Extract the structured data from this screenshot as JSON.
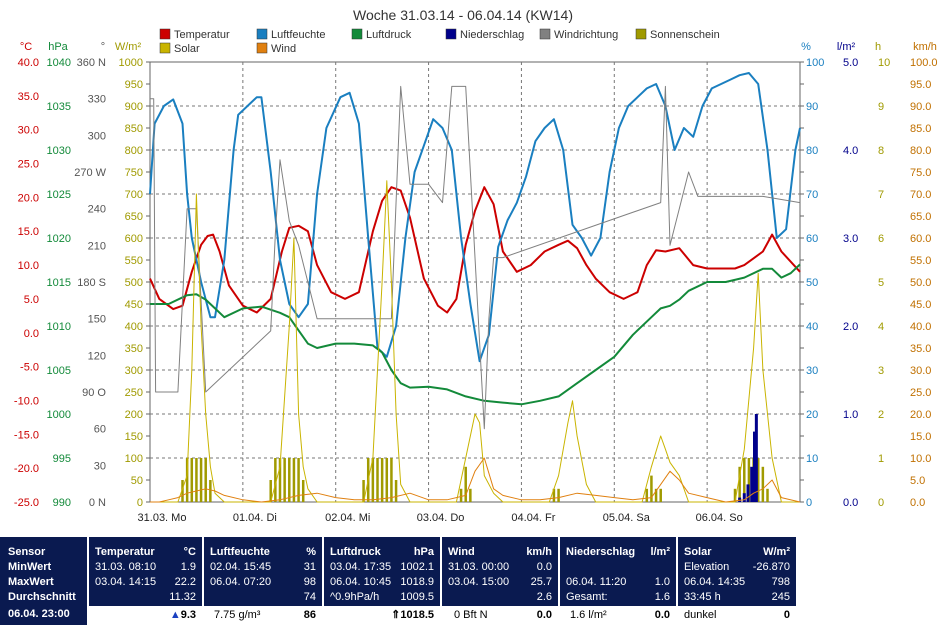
{
  "chart_data": {
    "type": "line",
    "title": "Woche 31.03.14 - 06.04.14 (KW14)",
    "legend": [
      {
        "name": "Temperatur",
        "color": "#cc0000"
      },
      {
        "name": "Luftfeuchte",
        "color": "#1a7fc0"
      },
      {
        "name": "Luftdruck",
        "color": "#138a3a"
      },
      {
        "name": "Niederschlag",
        "color": "#00008b"
      },
      {
        "name": "Windrichtung",
        "color": "#808080"
      },
      {
        "name": "Sonnenschein",
        "color": "#a09a00"
      },
      {
        "name": "Solar",
        "color": "#c9b400"
      },
      {
        "name": "Wind",
        "color": "#e08010"
      }
    ],
    "left_axes": [
      {
        "unit": "°C",
        "color": "#cc0000",
        "ticks": [
          "40.0",
          "35.0",
          "30.0",
          "25.0",
          "20.0",
          "15.0",
          "10.0",
          "5.0",
          "0.0",
          "-5.0",
          "-10.0",
          "-15.0",
          "-20.0",
          "-25.0"
        ]
      },
      {
        "unit": "hPa",
        "color": "#138a3a",
        "ticks": [
          "1040",
          "1035",
          "1030",
          "1025",
          "1020",
          "1015",
          "1010",
          "1005",
          "1000",
          "995",
          "990"
        ]
      },
      {
        "unit": "°",
        "color": "#555555",
        "ticks": [
          "360 N",
          "330",
          "300",
          "270 W",
          "240",
          "210",
          "180 S",
          "150",
          "120",
          "90 O",
          "60",
          "30",
          "0 N"
        ]
      },
      {
        "unit": "W/m²",
        "color": "#a09a00",
        "ticks": [
          "1000",
          "950",
          "900",
          "850",
          "800",
          "750",
          "700",
          "650",
          "600",
          "550",
          "500",
          "450",
          "400",
          "350",
          "300",
          "250",
          "200",
          "150",
          "100",
          "50",
          "0"
        ]
      }
    ],
    "right_axes": [
      {
        "unit": "%",
        "color": "#1a7fc0",
        "ticks": [
          "100",
          "90",
          "80",
          "70",
          "60",
          "50",
          "40",
          "30",
          "20",
          "10",
          "0"
        ]
      },
      {
        "unit": "l/m²",
        "color": "#00008b",
        "ticks": [
          "5.0",
          "4.0",
          "3.0",
          "2.0",
          "1.0",
          "0.0"
        ]
      },
      {
        "unit": "h",
        "color": "#a09a00",
        "ticks": [
          "10",
          "9",
          "8",
          "7",
          "6",
          "5",
          "4",
          "3",
          "2",
          "1",
          "0"
        ]
      },
      {
        "unit": "km/h",
        "color": "#c07000",
        "ticks": [
          "100.0",
          "95.0",
          "90.0",
          "85.0",
          "80.0",
          "75.0",
          "70.0",
          "65.0",
          "60.0",
          "55.0",
          "50.0",
          "45.0",
          "40.0",
          "35.0",
          "30.0",
          "25.0",
          "20.0",
          "15.0",
          "10.0",
          "5.0",
          "0.0"
        ]
      }
    ],
    "x_labels": [
      "31.03. Mo",
      "01.04. Di",
      "02.04. Mi",
      "03.04. Do",
      "04.04. Fr",
      "05.04. Sa",
      "06.04. So"
    ],
    "x_range_days": [
      0,
      7
    ],
    "grid": true,
    "series": [
      {
        "name": "Temperatur",
        "unit": "°C",
        "x": [
          0,
          0.1,
          0.25,
          0.35,
          0.45,
          0.55,
          0.62,
          0.68,
          0.75,
          0.85,
          1.0,
          1.15,
          1.3,
          1.42,
          1.5,
          1.6,
          1.7,
          1.8,
          1.95,
          2.1,
          2.25,
          2.4,
          2.5,
          2.6,
          2.7,
          2.8,
          2.95,
          3.1,
          3.2,
          3.3,
          3.4,
          3.5,
          3.6,
          3.7,
          3.8,
          3.95,
          4.1,
          4.25,
          4.4,
          4.5,
          4.6,
          4.7,
          4.8,
          4.95,
          5.1,
          5.25,
          5.35,
          5.45,
          5.55,
          5.7,
          5.85,
          6.0,
          6.15,
          6.3,
          6.4,
          6.5,
          6.6,
          6.7,
          6.8,
          7.0
        ],
        "y": [
          8,
          5,
          3.5,
          4,
          9,
          13,
          14.3,
          14.5,
          12,
          7,
          4,
          3,
          5,
          12,
          15.5,
          15.8,
          15,
          10,
          6,
          5,
          6,
          15,
          19.5,
          21.5,
          21,
          17,
          8,
          4,
          3,
          5,
          13,
          18,
          21.5,
          19,
          12,
          9,
          10,
          12,
          13,
          13.6,
          12.5,
          10,
          8,
          6,
          5,
          6,
          10,
          12.2,
          12,
          12.5,
          10,
          9.5,
          9.5,
          9.5,
          10,
          11,
          12,
          14.5,
          12,
          9
        ]
      },
      {
        "name": "Luftfeuchte",
        "unit": "%",
        "x": [
          0,
          0.05,
          0.15,
          0.25,
          0.35,
          0.4,
          0.45,
          0.55,
          0.65,
          0.7,
          0.8,
          0.9,
          0.95,
          1.05,
          1.15,
          1.2,
          1.3,
          1.4,
          1.5,
          1.6,
          1.7,
          1.8,
          1.9,
          2.05,
          2.15,
          2.25,
          2.35,
          2.45,
          2.55,
          2.65,
          2.75,
          2.85,
          2.95,
          3.05,
          3.15,
          3.25,
          3.35,
          3.45,
          3.55,
          3.65,
          3.75,
          3.85,
          3.95,
          4.05,
          4.15,
          4.25,
          4.35,
          4.45,
          4.55,
          4.65,
          4.75,
          4.85,
          4.95,
          5.05,
          5.15,
          5.25,
          5.35,
          5.45,
          5.55,
          5.65,
          5.75,
          5.85,
          5.95,
          6.05,
          6.15,
          6.25,
          6.35,
          6.45,
          6.55,
          6.65,
          6.75,
          6.85,
          6.95,
          7.0
        ],
        "y": [
          70,
          86,
          90,
          91.5,
          86,
          70,
          60,
          50,
          42,
          42,
          55,
          80,
          88,
          90,
          92,
          92,
          75,
          55,
          45,
          42,
          45,
          70,
          85,
          92,
          93,
          86,
          60,
          35,
          33,
          40,
          60,
          75,
          81,
          87,
          85,
          80,
          60,
          45,
          32,
          38,
          58,
          64,
          68,
          74,
          82,
          85,
          87,
          80,
          63,
          60,
          56,
          60,
          75,
          85,
          90,
          92,
          94,
          95,
          90,
          80,
          85,
          83,
          90,
          94,
          95,
          96,
          97,
          97.5,
          95,
          80,
          60,
          62,
          80,
          85
        ]
      },
      {
        "name": "Luftdruck",
        "unit": "hPa",
        "x": [
          0,
          0.2,
          0.4,
          0.5,
          0.6,
          0.7,
          0.8,
          1.0,
          1.2,
          1.4,
          1.5,
          1.6,
          1.7,
          1.8,
          2.0,
          2.2,
          2.4,
          2.5,
          2.6,
          2.7,
          2.8,
          3.0,
          3.2,
          3.4,
          3.6,
          3.8,
          4.0,
          4.2,
          4.4,
          4.6,
          4.8,
          5.0,
          5.2,
          5.4,
          5.5,
          5.6,
          5.7,
          5.8,
          6.0,
          6.2,
          6.4,
          6.6,
          6.7,
          6.8,
          6.9,
          7.0
        ],
        "y": [
          1012.5,
          1012.5,
          1013.5,
          1013.6,
          1013,
          1012,
          1011,
          1012,
          1012.2,
          1011.5,
          1011,
          1009.5,
          1008,
          1007.5,
          1008,
          1008,
          1007.8,
          1007,
          1005,
          1003.5,
          1003,
          1003.1,
          1002.8,
          1002,
          1001.5,
          1001.3,
          1001.1,
          1001.5,
          1002,
          1003.5,
          1005,
          1006.5,
          1009,
          1011,
          1012,
          1012.3,
          1013,
          1014,
          1015,
          1015,
          1015.5,
          1016.5,
          1016.5,
          1015.5,
          1016,
          1017
        ]
      },
      {
        "name": "Windrichtung",
        "unit": "°",
        "x": [
          0,
          0.04,
          0.06,
          0.1,
          0.3,
          0.4,
          0.5,
          0.6,
          1.3,
          1.35,
          1.4,
          1.5,
          1.6,
          1.8,
          2.6,
          2.7,
          2.8,
          3.0,
          3.15,
          3.25,
          3.3,
          3.35,
          3.4,
          3.5,
          3.6,
          3.65,
          3.7,
          3.8,
          5.5,
          5.55,
          5.6,
          5.7,
          5.8,
          5.9,
          6.0,
          6.3,
          6.6,
          7.0
        ],
        "y": [
          330,
          330,
          90,
          90,
          90,
          240,
          240,
          90,
          140,
          220,
          280,
          230,
          210,
          150,
          150,
          340,
          260,
          260,
          245,
          340,
          340,
          340,
          340,
          200,
          60,
          150,
          200,
          200,
          245,
          340,
          210,
          240,
          270,
          250,
          250,
          250,
          250,
          245
        ]
      },
      {
        "name": "Solar",
        "unit": "W/m²",
        "x": [
          0,
          0.3,
          0.4,
          0.45,
          0.5,
          0.55,
          0.6,
          0.65,
          0.7,
          0.8,
          1.0,
          1.3,
          1.4,
          1.5,
          1.55,
          1.6,
          1.65,
          1.7,
          1.8,
          2.0,
          2.3,
          2.4,
          2.5,
          2.55,
          2.6,
          2.65,
          2.7,
          2.8,
          3.0,
          3.3,
          3.4,
          3.5,
          3.55,
          3.6,
          3.7,
          3.8,
          4.0,
          4.3,
          4.4,
          4.5,
          4.55,
          4.6,
          4.7,
          4.8,
          5.0,
          5.3,
          5.4,
          5.5,
          5.55,
          5.6,
          5.7,
          5.8,
          6.0,
          6.3,
          6.4,
          6.5,
          6.55,
          6.6,
          6.7,
          6.8,
          7.0
        ],
        "y": [
          0,
          0,
          60,
          300,
          700,
          400,
          200,
          80,
          20,
          0,
          0,
          0,
          80,
          400,
          600,
          200,
          80,
          30,
          0,
          0,
          0,
          100,
          500,
          730,
          500,
          200,
          40,
          0,
          0,
          0,
          100,
          200,
          180,
          60,
          20,
          0,
          0,
          0,
          60,
          180,
          230,
          150,
          40,
          0,
          0,
          0,
          80,
          150,
          120,
          90,
          60,
          0,
          0,
          0,
          120,
          350,
          520,
          300,
          100,
          0,
          0
        ]
      },
      {
        "name": "Wind",
        "unit": "km/h",
        "x": [
          0,
          0.1,
          0.2,
          0.3,
          0.4,
          0.5,
          0.6,
          0.7,
          0.8,
          1.0,
          1.2,
          1.4,
          1.6,
          1.8,
          2.0,
          2.2,
          2.4,
          2.6,
          2.8,
          3.0,
          3.2,
          3.4,
          3.5,
          3.6,
          3.7,
          3.8,
          4.0,
          4.2,
          4.4,
          4.6,
          4.8,
          5.0,
          5.2,
          5.4,
          5.5,
          5.6,
          5.7,
          5.8,
          6.0,
          6.2,
          6.4,
          6.5,
          6.6,
          6.7,
          6.8,
          7.0
        ],
        "y": [
          0,
          0,
          0.5,
          1,
          2,
          2.5,
          3,
          2.5,
          1.5,
          0.5,
          0,
          0.5,
          1.5,
          2,
          1,
          0.5,
          0.5,
          1,
          2,
          0.5,
          0.5,
          1.5,
          7,
          10,
          3,
          1.5,
          0.5,
          0.5,
          1,
          2,
          1.5,
          1,
          0.5,
          1,
          4,
          7,
          5,
          2,
          1,
          0,
          0.5,
          2,
          3,
          5,
          1,
          0
        ]
      },
      {
        "name": "Sonnenschein",
        "unit": "h",
        "type": "bar",
        "x": [
          0.35,
          0.4,
          0.45,
          0.5,
          0.55,
          0.6,
          0.65,
          1.3,
          1.35,
          1.4,
          1.45,
          1.5,
          1.55,
          1.6,
          1.65,
          2.3,
          2.35,
          2.4,
          2.45,
          2.5,
          2.55,
          2.6,
          2.65,
          3.35,
          3.4,
          3.45,
          4.35,
          4.4,
          5.35,
          5.4,
          5.45,
          5.5,
          6.3,
          6.35,
          6.4,
          6.45,
          6.5,
          6.55,
          6.6,
          6.65
        ],
        "y": [
          0.5,
          1.0,
          1.0,
          1.0,
          1.0,
          1.0,
          0.5,
          0.5,
          1.0,
          1.0,
          1.0,
          1.0,
          1.0,
          1.0,
          0.5,
          0.5,
          1.0,
          1.0,
          1.0,
          1.0,
          1.0,
          1.0,
          0.5,
          0.3,
          0.8,
          0.3,
          0.3,
          0.3,
          0.3,
          0.6,
          0.3,
          0.3,
          0.3,
          0.8,
          1.0,
          1.0,
          1.0,
          1.0,
          0.8,
          0.3
        ]
      },
      {
        "name": "Niederschlag",
        "unit": "l/m²",
        "type": "bar",
        "x": [
          6.35,
          6.4,
          6.44,
          6.48,
          6.51,
          6.53
        ],
        "y": [
          0.05,
          0.1,
          0.2,
          0.4,
          0.8,
          1.0
        ]
      }
    ]
  },
  "summary": {
    "row_labels": [
      "Sensor",
      "MinWert",
      "MaxWert",
      "Durchschnitt",
      "06.04. 23:00"
    ],
    "temperatur": {
      "title": "Temperatur",
      "unit": "°C",
      "min_time": "31.03. 08:10",
      "min": "1.9",
      "max_time": "03.04. 14:15",
      "max": "22.2",
      "avg": "11.32",
      "current": "9.3"
    },
    "luftfeuchte": {
      "title": "Luftfeuchte",
      "unit": "%",
      "min_time": "02.04. 15:45",
      "min": "31",
      "max_time": "06.04. 07:20",
      "max": "98",
      "avg": "74",
      "extra": "7.75 g/m³",
      "current": "86"
    },
    "luftdruck": {
      "title": "Luftdruck",
      "unit": "hPa",
      "min_time": "03.04. 17:35",
      "min": "1002.1",
      "max_time": "06.04. 10:45",
      "max": "1018.9",
      "trend": "^0.9hPa/h",
      "avg": "1009.5",
      "current": "1018.5"
    },
    "wind": {
      "title": "Wind",
      "unit": "km/h",
      "min_time": "31.03. 00:00",
      "min": "0.0",
      "max_time": "03.04. 15:00",
      "max": "25.7",
      "avg": "2.6",
      "bft": "0 Bft N",
      "current": "0.0"
    },
    "niederschlag": {
      "title": "Niederschlag",
      "unit": "l/m²",
      "max_time": "06.04. 11:20",
      "max": "1.0",
      "gesamt_label": "Gesamt:",
      "gesamt": "1.6",
      "rate": "1.6 l/m²",
      "current": "0.0"
    },
    "solar": {
      "title": "Solar",
      "unit": "W/m²",
      "elev_label": "Elevation",
      "elev": "-26.870",
      "max_time": "06.04. 14:35",
      "max": "798",
      "duration": "33:45 h",
      "avg": "245",
      "state": "dunkel",
      "current": "0"
    }
  }
}
